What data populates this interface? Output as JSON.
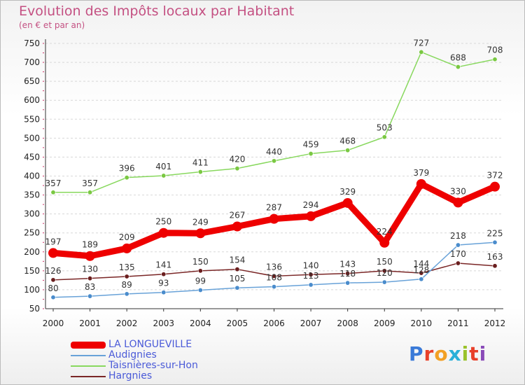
{
  "title": "Evolution des Impôts locaux par Habitant",
  "subtitle": "(en € et par an)",
  "logo": {
    "text": "Proxiti",
    "letter_colors": [
      "#3a7ad8",
      "#e8402a",
      "#f2a024",
      "#2ab0d8",
      "#9ac22a",
      "#e8402a",
      "#8a4ab8"
    ]
  },
  "chart_data": {
    "type": "line",
    "x": [
      2000,
      2001,
      2002,
      2003,
      2004,
      2005,
      2006,
      2007,
      2008,
      2009,
      2010,
      2011,
      2012
    ],
    "ylim": [
      50,
      750
    ],
    "yticks": [
      50,
      100,
      150,
      200,
      250,
      300,
      350,
      400,
      450,
      500,
      550,
      600,
      650,
      700,
      750
    ],
    "grid": "horizontal",
    "legend_position": "bottom-left",
    "series": [
      {
        "name": "Taisnières-sur-Hon",
        "color": "#88d85e",
        "marker_color": "#7ac842",
        "values": [
          357,
          357,
          396,
          401,
          411,
          420,
          440,
          459,
          468,
          503,
          727,
          688,
          708
        ]
      },
      {
        "name": "LA LONGUEVILLE",
        "color": "#ee0000",
        "marker_color": "#ee0000",
        "values": [
          197,
          189,
          209,
          250,
          249,
          267,
          287,
          294,
          329,
          224,
          379,
          330,
          372
        ]
      },
      {
        "name": "Hargnies",
        "color": "#7a2626",
        "marker_color": "#6a1e1e",
        "values": [
          126,
          130,
          135,
          141,
          150,
          154,
          136,
          140,
          143,
          150,
          144,
          170,
          163
        ]
      },
      {
        "name": "Audignies",
        "color": "#68a2d8",
        "marker_color": "#4a8ccc",
        "values": [
          80,
          83,
          89,
          93,
          99,
          105,
          108,
          113,
          118,
          120,
          128,
          218,
          225
        ]
      }
    ]
  },
  "legend": [
    {
      "name": "LA LONGUEVILLE",
      "color": "#ee0000",
      "width": 10
    },
    {
      "name": "Audignies",
      "color": "#68a2d8",
      "width": 2
    },
    {
      "name": "Taisnières-sur-Hon",
      "color": "#88d85e",
      "width": 2
    },
    {
      "name": "Hargnies",
      "color": "#7a2626",
      "width": 2
    }
  ]
}
